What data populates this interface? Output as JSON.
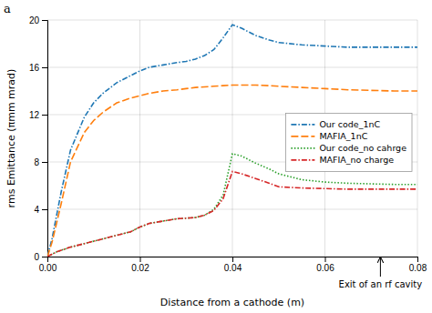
{
  "chart_data": {
    "type": "line",
    "xlabel": "Distance from a cathode (m)",
    "ylabel": "rms Emittance (πmm mrad)",
    "xlim": [
      0,
      0.08
    ],
    "ylim": [
      0,
      20
    ],
    "xticks": [
      {
        "value": 0,
        "label": "0.00"
      },
      0.02,
      0.04,
      0.06,
      0.08
    ],
    "yticks": [
      0,
      4,
      8,
      12,
      16,
      20
    ],
    "grid": true,
    "legend": "lower right",
    "annotations": [
      {
        "text": "Exit of an rf cavity",
        "x": 0.072
      },
      {
        "text": "a"
      }
    ],
    "series": [
      {
        "name": "Our code_1nC",
        "line_style": "dashdot",
        "x": [
          0.0,
          0.001,
          0.003,
          0.005,
          0.008,
          0.01,
          0.012,
          0.015,
          0.018,
          0.02,
          0.022,
          0.025,
          0.028,
          0.03,
          0.032,
          0.034,
          0.036,
          0.038,
          0.04,
          0.042,
          0.045,
          0.048,
          0.05,
          0.055,
          0.06,
          0.065,
          0.07,
          0.075,
          0.08
        ],
        "values": [
          0.0,
          1.5,
          5.5,
          9.0,
          11.8,
          13.0,
          13.8,
          14.7,
          15.3,
          15.7,
          16.0,
          16.2,
          16.4,
          16.5,
          16.7,
          17.0,
          17.5,
          18.5,
          19.6,
          19.3,
          18.7,
          18.3,
          18.1,
          17.9,
          17.8,
          17.7,
          17.7,
          17.7,
          17.7
        ]
      },
      {
        "name": "MAFIA_1nC",
        "line_style": "dashed",
        "x": [
          0.0,
          0.001,
          0.003,
          0.005,
          0.008,
          0.01,
          0.012,
          0.015,
          0.018,
          0.02,
          0.022,
          0.025,
          0.028,
          0.03,
          0.032,
          0.034,
          0.036,
          0.038,
          0.04,
          0.042,
          0.045,
          0.048,
          0.05,
          0.055,
          0.06,
          0.065,
          0.07,
          0.075,
          0.08
        ],
        "values": [
          0.0,
          1.2,
          4.5,
          8.0,
          10.5,
          11.5,
          12.2,
          13.0,
          13.4,
          13.6,
          13.8,
          14.0,
          14.1,
          14.2,
          14.3,
          14.35,
          14.4,
          14.45,
          14.5,
          14.5,
          14.5,
          14.45,
          14.4,
          14.3,
          14.2,
          14.1,
          14.05,
          14.0,
          14.0
        ]
      },
      {
        "name": "Our code_no cahrge",
        "line_style": "dotted",
        "x": [
          0.0,
          0.002,
          0.005,
          0.008,
          0.01,
          0.012,
          0.015,
          0.018,
          0.02,
          0.022,
          0.025,
          0.028,
          0.03,
          0.032,
          0.034,
          0.036,
          0.038,
          0.04,
          0.042,
          0.045,
          0.048,
          0.05,
          0.055,
          0.06,
          0.065,
          0.07,
          0.075,
          0.08
        ],
        "values": [
          0.0,
          0.4,
          0.8,
          1.1,
          1.3,
          1.5,
          1.8,
          2.1,
          2.5,
          2.8,
          3.0,
          3.2,
          3.25,
          3.3,
          3.5,
          4.0,
          5.2,
          8.7,
          8.5,
          7.9,
          7.4,
          7.0,
          6.5,
          6.3,
          6.2,
          6.15,
          6.1,
          6.1
        ]
      },
      {
        "name": "MAFIA_no charge",
        "line_style": "dashdot",
        "x": [
          0.0,
          0.002,
          0.005,
          0.008,
          0.01,
          0.012,
          0.015,
          0.018,
          0.02,
          0.022,
          0.025,
          0.028,
          0.03,
          0.032,
          0.034,
          0.036,
          0.038,
          0.04,
          0.042,
          0.045,
          0.048,
          0.05,
          0.055,
          0.06,
          0.065,
          0.07,
          0.075,
          0.08
        ],
        "values": [
          0.0,
          0.4,
          0.8,
          1.1,
          1.3,
          1.5,
          1.8,
          2.1,
          2.5,
          2.8,
          3.0,
          3.2,
          3.25,
          3.3,
          3.5,
          3.9,
          4.9,
          7.2,
          7.0,
          6.6,
          6.2,
          5.9,
          5.8,
          5.75,
          5.7,
          5.7,
          5.7,
          5.7
        ]
      }
    ]
  }
}
